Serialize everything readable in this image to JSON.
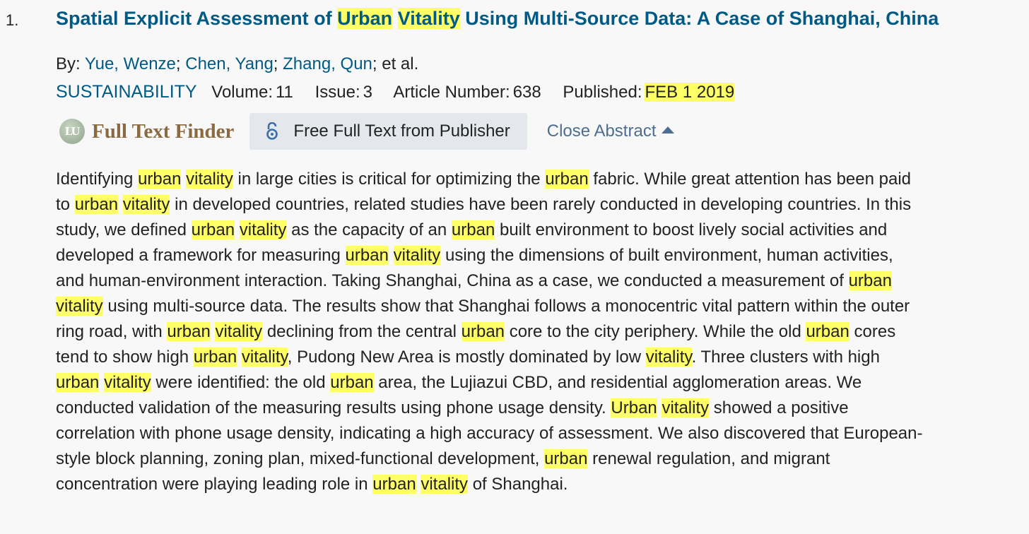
{
  "record": {
    "index": "1.",
    "title": {
      "pre": "Spatial Explicit Assessment of ",
      "hl1": "Urban",
      "sp": " ",
      "hl2": "Vitality",
      "post": " Using Multi-Source Data: A Case of Shanghai, China"
    },
    "authors": {
      "prefix": "By: ",
      "a1": "Yue, Wenze",
      "a2": "Chen, Yang",
      "a3": "Zhang, Qun",
      "sep": "; ",
      "suffix": "; et al."
    },
    "source": {
      "journal": "SUSTAINABILITY",
      "volume_label": "Volume:",
      "volume": "11",
      "issue_label": "Issue:",
      "issue": "3",
      "article_label": "Article Number:",
      "article": "638",
      "published_label": "Published:",
      "published": "FEB 1 2019"
    },
    "links": {
      "ftf_logo": "LU",
      "ftf_label": "Full Text Finder",
      "free_full_text": "Free Full Text from Publisher",
      "close_abstract": "Close Abstract"
    },
    "abstract_lines": [
      [
        "Identifying ",
        "*urban",
        " ",
        "*vitality",
        " in large cities is critical for optimizing the ",
        "*urban",
        " fabric. While great attention has been paid"
      ],
      [
        "to ",
        "*urban",
        " ",
        "*vitality",
        " in developed countries, related studies have been rarely conducted in developing countries. In this"
      ],
      [
        "study, we defined ",
        "*urban",
        " ",
        "*vitality",
        " as the capacity of an ",
        "*urban",
        " built environment to boost lively social activities and"
      ],
      [
        "developed a framework for measuring ",
        "*urban",
        " ",
        "*vitality",
        " using the dimensions of built environment, human activities,"
      ],
      [
        "and human-environment interaction. Taking Shanghai, China as a case, we conducted a measurement of ",
        "*urban"
      ],
      [
        "*vitality",
        " using multi-source data. The results show that Shanghai follows a monocentric vital pattern within the outer"
      ],
      [
        "ring road, with ",
        "*urban",
        " ",
        "*vitality",
        " declining from the central ",
        "*urban",
        " core to the city periphery. While the old ",
        "*urban",
        " cores"
      ],
      [
        "tend to show high ",
        "*urban",
        " ",
        "*vitality",
        ", Pudong New Area is mostly dominated by low ",
        "*vitality",
        ". Three clusters with high"
      ],
      [
        "*urban",
        " ",
        "*vitality",
        " were identified: the old ",
        "*urban",
        " area, the Lujiazui CBD, and residential agglomeration areas. We"
      ],
      [
        "conducted validation of the measuring results using phone usage density. ",
        "*Urban",
        " ",
        "*vitality",
        " showed a positive"
      ],
      [
        "correlation with phone usage density, indicating a high accuracy of assessment. We also discovered that European-"
      ],
      [
        "style block planning, zoning plan, mixed-functional development, ",
        "*urban",
        " renewal regulation, and migrant"
      ],
      [
        "concentration were playing leading role in ",
        "*urban",
        " ",
        "*vitality",
        " of Shanghai."
      ]
    ],
    "highlight_color": "#ffff66",
    "link_color": "#005a84"
  }
}
